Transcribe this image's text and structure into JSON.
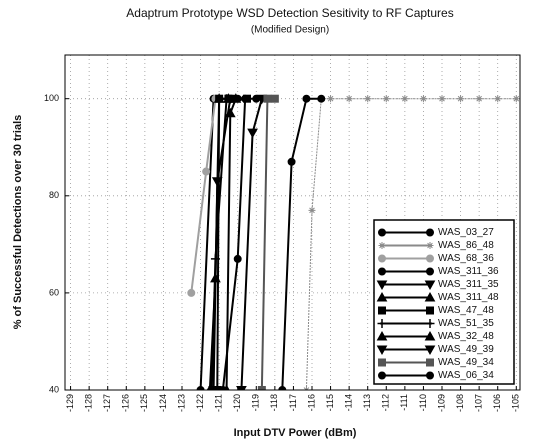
{
  "chart_data": {
    "type": "line",
    "title": "Adaptrum Prototype WSD Detection Sesitivity to RF Captures",
    "subtitle": "(Modified Design)",
    "x_label": "Input DTV Power (dBm)",
    "y_label": "% of Successful Detections over 30 trials",
    "xlim": [
      -129.3,
      -104.8
    ],
    "ylim": [
      40,
      109
    ],
    "xticks": [
      -129,
      -128,
      -127,
      -126,
      -125,
      -124,
      -123,
      -122,
      -121,
      -120,
      -119,
      -118,
      -117,
      -116,
      -115,
      -114,
      -113,
      -112,
      -111,
      -110,
      -109,
      -108,
      -107,
      -106,
      -105
    ],
    "yticks": [
      40,
      60,
      80,
      100
    ],
    "grid": true,
    "legend": "lower right",
    "series": [
      {
        "name": "WAS_03_27",
        "color": "#000000",
        "marker": "circle",
        "x": [
          -122,
          -121.3,
          -120
        ],
        "values": [
          40,
          100,
          100
        ]
      },
      {
        "name": "WAS_86_48",
        "color": "#8a8a8a",
        "marker": "star",
        "x": [
          -116.3,
          -116,
          -115.5,
          -115,
          -114,
          -113,
          -112,
          -111,
          -110,
          -109,
          -108,
          -107,
          -106,
          -105
        ],
        "values": [
          40,
          77,
          100,
          100,
          100,
          100,
          100,
          100,
          100,
          100,
          100,
          100,
          100,
          100
        ]
      },
      {
        "name": "WAS_68_36",
        "color": "#a0a0a0",
        "marker": "circle",
        "x": [
          -122.5,
          -121.7,
          -121.2,
          -120.5
        ],
        "values": [
          60,
          85,
          100,
          100
        ]
      },
      {
        "name": "WAS_311_36",
        "color": "#000000",
        "marker": "circle",
        "x": [
          -120.8,
          -120,
          -119.6,
          -119
        ],
        "values": [
          40,
          67,
          100,
          100
        ]
      },
      {
        "name": "WAS_311_35",
        "color": "#000000",
        "marker": "tri-down",
        "x": [
          -119.8,
          -119.2,
          -118.7
        ],
        "values": [
          40,
          93,
          100
        ]
      },
      {
        "name": "WAS_311_48",
        "color": "#000000",
        "marker": "tri-up",
        "x": [
          -121.5,
          -121.2,
          -121,
          -120.5
        ],
        "values": [
          40,
          63,
          100,
          100
        ]
      },
      {
        "name": "WAS_47_48",
        "color": "#000000",
        "marker": "square",
        "x": [
          -121.1,
          -121,
          -120.5,
          -119.5
        ],
        "values": [
          40,
          100,
          100,
          100
        ]
      },
      {
        "name": "WAS_51_35",
        "color": "#000000",
        "marker": "plus",
        "x": [
          -121.4,
          -121.2,
          -120.6
        ],
        "values": [
          40,
          67,
          100
        ]
      },
      {
        "name": "WAS_32_48",
        "color": "#000000",
        "marker": "tri-up",
        "x": [
          -120.6,
          -120.4,
          -120.1
        ],
        "values": [
          40,
          97,
          100
        ]
      },
      {
        "name": "WAS_49_39",
        "color": "#000000",
        "marker": "tri-down",
        "x": [
          -121.3,
          -121.1,
          -120.4
        ],
        "values": [
          40,
          83,
          100
        ]
      },
      {
        "name": "WAS_49_34",
        "color": "#555555",
        "marker": "square",
        "x": [
          -118.7,
          -118.4,
          -118
        ],
        "values": [
          40,
          100,
          100
        ]
      },
      {
        "name": "WAS_06_34",
        "color": "#000000",
        "marker": "circle",
        "x": [
          -117.6,
          -117.1,
          -116.3,
          -115.5
        ],
        "values": [
          40,
          87,
          100,
          100
        ]
      }
    ]
  }
}
